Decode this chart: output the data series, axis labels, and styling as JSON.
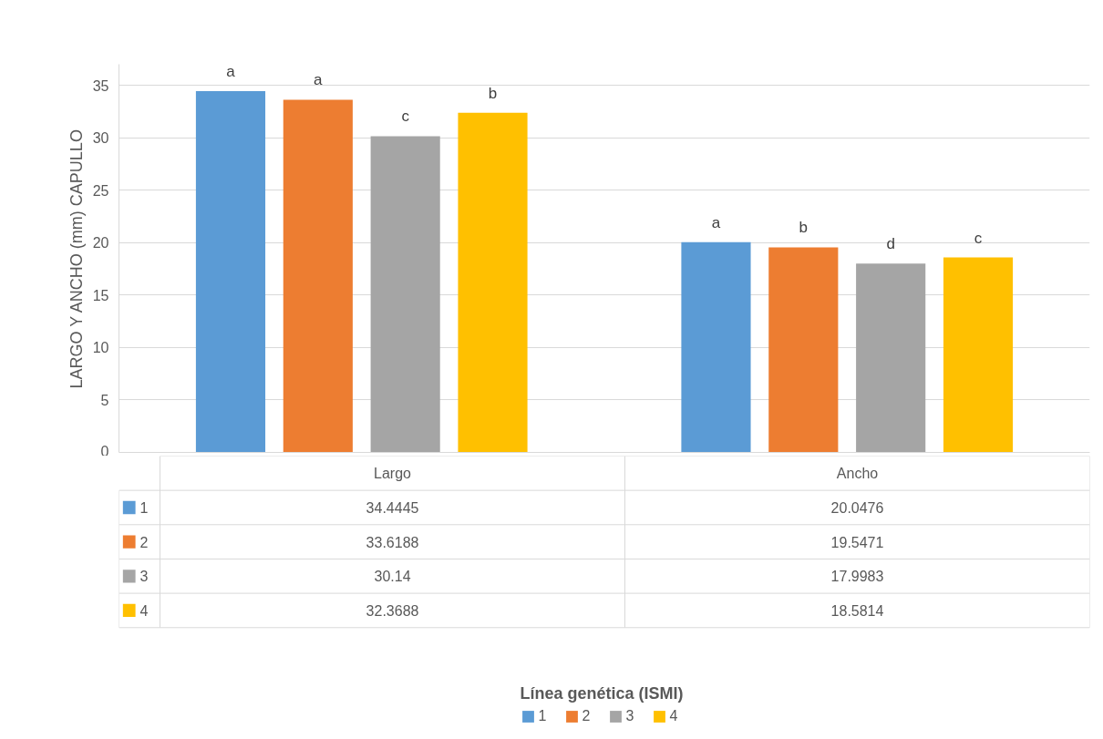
{
  "chart_data": {
    "type": "bar",
    "ylabel": "LARGO Y ANCHO (mm) CAPULLO",
    "legend_title": "Línea genética (ISMI)",
    "categories": [
      "Largo",
      "Ancho"
    ],
    "series": [
      {
        "name": "1",
        "color": "#5b9bd5",
        "values": [
          34.4445,
          20.0476
        ]
      },
      {
        "name": "2",
        "color": "#ed7d31",
        "values": [
          33.6188,
          19.5471
        ]
      },
      {
        "name": "3",
        "color": "#a5a5a5",
        "values": [
          30.14,
          17.9983
        ]
      },
      {
        "name": "4",
        "color": "#ffc000",
        "values": [
          32.3688,
          18.5814
        ]
      }
    ],
    "ylim": [
      0,
      37
    ],
    "yticks": [
      0,
      5,
      10,
      15,
      20,
      25,
      30,
      35
    ],
    "grid": "y",
    "legend": "bottom",
    "data_labels": true,
    "annotations": [
      "a",
      "a",
      "c",
      "b",
      "a",
      "b",
      "d",
      "c"
    ]
  }
}
